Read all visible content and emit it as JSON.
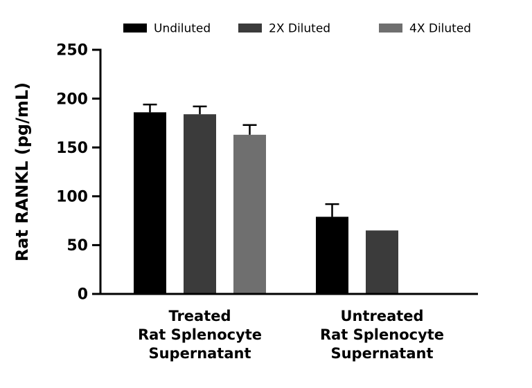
{
  "figure": {
    "background": "#ffffff",
    "description": "Grouped bar chart with error bars"
  },
  "chart_data": {
    "type": "bar",
    "title": "",
    "xlabel": "",
    "ylabel": "Rat RANKL (pg/mL)",
    "ylim": [
      0,
      250
    ],
    "yticks": [
      0,
      50,
      100,
      150,
      200,
      250
    ],
    "grid": false,
    "legend_position": "top",
    "categories": [
      [
        "Treated",
        "Rat Splenocyte",
        "Supernatant"
      ],
      [
        "Untreated",
        "Rat Splenocyte",
        "Supernatant"
      ]
    ],
    "series": [
      {
        "name": "Undiluted",
        "color": "#000000",
        "values": [
          186,
          79
        ],
        "errors": [
          8,
          13
        ]
      },
      {
        "name": "2X Diluted",
        "color": "#3b3b3b",
        "values": [
          184,
          65
        ],
        "errors": [
          8,
          0
        ]
      },
      {
        "name": "4X Diluted",
        "color": "#6f6f6f",
        "values": [
          163,
          null
        ],
        "errors": [
          10,
          null
        ]
      }
    ],
    "error_bar_color": "#000000",
    "axis_color": "#000000"
  }
}
